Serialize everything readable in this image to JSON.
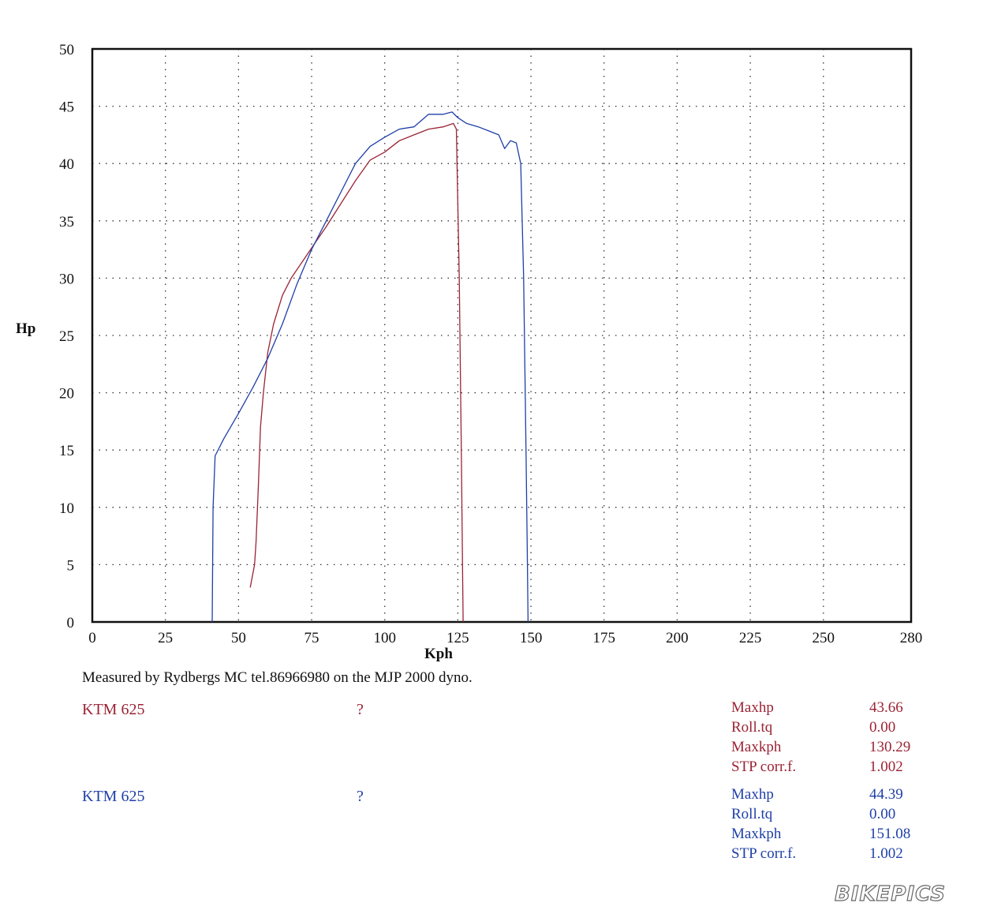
{
  "chart_data": {
    "type": "line",
    "xlabel": "Kph",
    "ylabel": "Hp",
    "xlim": [
      0,
      280
    ],
    "ylim": [
      0,
      50
    ],
    "xticks": [
      "0",
      "25",
      "50",
      "75",
      "100",
      "125",
      "150",
      "175",
      "200",
      "225",
      "250",
      "280"
    ],
    "yticks": [
      "0",
      "5",
      "10",
      "15",
      "20",
      "25",
      "30",
      "35",
      "40",
      "45",
      "50"
    ],
    "grid": true,
    "series": [
      {
        "name": "KTM 625",
        "color": "#9b2335",
        "points": [
          [
            54,
            3
          ],
          [
            55.5,
            5
          ],
          [
            56,
            7
          ],
          [
            56.8,
            12
          ],
          [
            57.5,
            17
          ],
          [
            58.5,
            20
          ],
          [
            60,
            23.5
          ],
          [
            62,
            26
          ],
          [
            65,
            28.5
          ],
          [
            68,
            30
          ],
          [
            72,
            31.5
          ],
          [
            76,
            33
          ],
          [
            80,
            34.5
          ],
          [
            85,
            36.5
          ],
          [
            90,
            38.5
          ],
          [
            95,
            40.3
          ],
          [
            100,
            41
          ],
          [
            105,
            42
          ],
          [
            110,
            42.5
          ],
          [
            115,
            43
          ],
          [
            120,
            43.2
          ],
          [
            123.5,
            43.5
          ],
          [
            124.5,
            43
          ],
          [
            125.5,
            30
          ],
          [
            126.2,
            15
          ],
          [
            126.6,
            5
          ],
          [
            126.8,
            0
          ]
        ]
      },
      {
        "name": "KTM 625",
        "color": "#1f3fa8",
        "points": [
          [
            41,
            0
          ],
          [
            41.3,
            10
          ],
          [
            42,
            14.5
          ],
          [
            45,
            16
          ],
          [
            50,
            18.2
          ],
          [
            55,
            20.5
          ],
          [
            60,
            23
          ],
          [
            65,
            26
          ],
          [
            70,
            29.5
          ],
          [
            75,
            32.5
          ],
          [
            80,
            35
          ],
          [
            85,
            37.5
          ],
          [
            90,
            40
          ],
          [
            95,
            41.5
          ],
          [
            100,
            42.3
          ],
          [
            105,
            43
          ],
          [
            110,
            43.2
          ],
          [
            115,
            44.3
          ],
          [
            120,
            44.3
          ],
          [
            123,
            44.5
          ],
          [
            125,
            44
          ],
          [
            128,
            43.5
          ],
          [
            132,
            43.2
          ],
          [
            136,
            42.8
          ],
          [
            139,
            42.5
          ],
          [
            141,
            41.3
          ],
          [
            143,
            42
          ],
          [
            145,
            41.8
          ],
          [
            146.5,
            40
          ],
          [
            147.5,
            30
          ],
          [
            148.3,
            15
          ],
          [
            148.8,
            5
          ],
          [
            149,
            0
          ]
        ]
      }
    ]
  },
  "caption": "Measured by Rydbergs MC tel.86966980 on the MJP 2000 dyno.",
  "runs": [
    {
      "name": "KTM 625",
      "note": "?",
      "color": "#9b2335",
      "stats": [
        {
          "label": "Maxhp",
          "value": "43.66"
        },
        {
          "label": "Roll.tq",
          "value": "0.00"
        },
        {
          "label": "Maxkph",
          "value": "130.29"
        },
        {
          "label": "STP corr.f.",
          "value": "1.002"
        }
      ]
    },
    {
      "name": "KTM 625",
      "note": "?",
      "color": "#1f3fa8",
      "stats": [
        {
          "label": "Maxhp",
          "value": "44.39"
        },
        {
          "label": "Roll.tq",
          "value": "0.00"
        },
        {
          "label": "Maxkph",
          "value": "151.08"
        },
        {
          "label": "STP corr.f.",
          "value": "1.002"
        }
      ]
    }
  ],
  "watermark": "BIKEPICS"
}
